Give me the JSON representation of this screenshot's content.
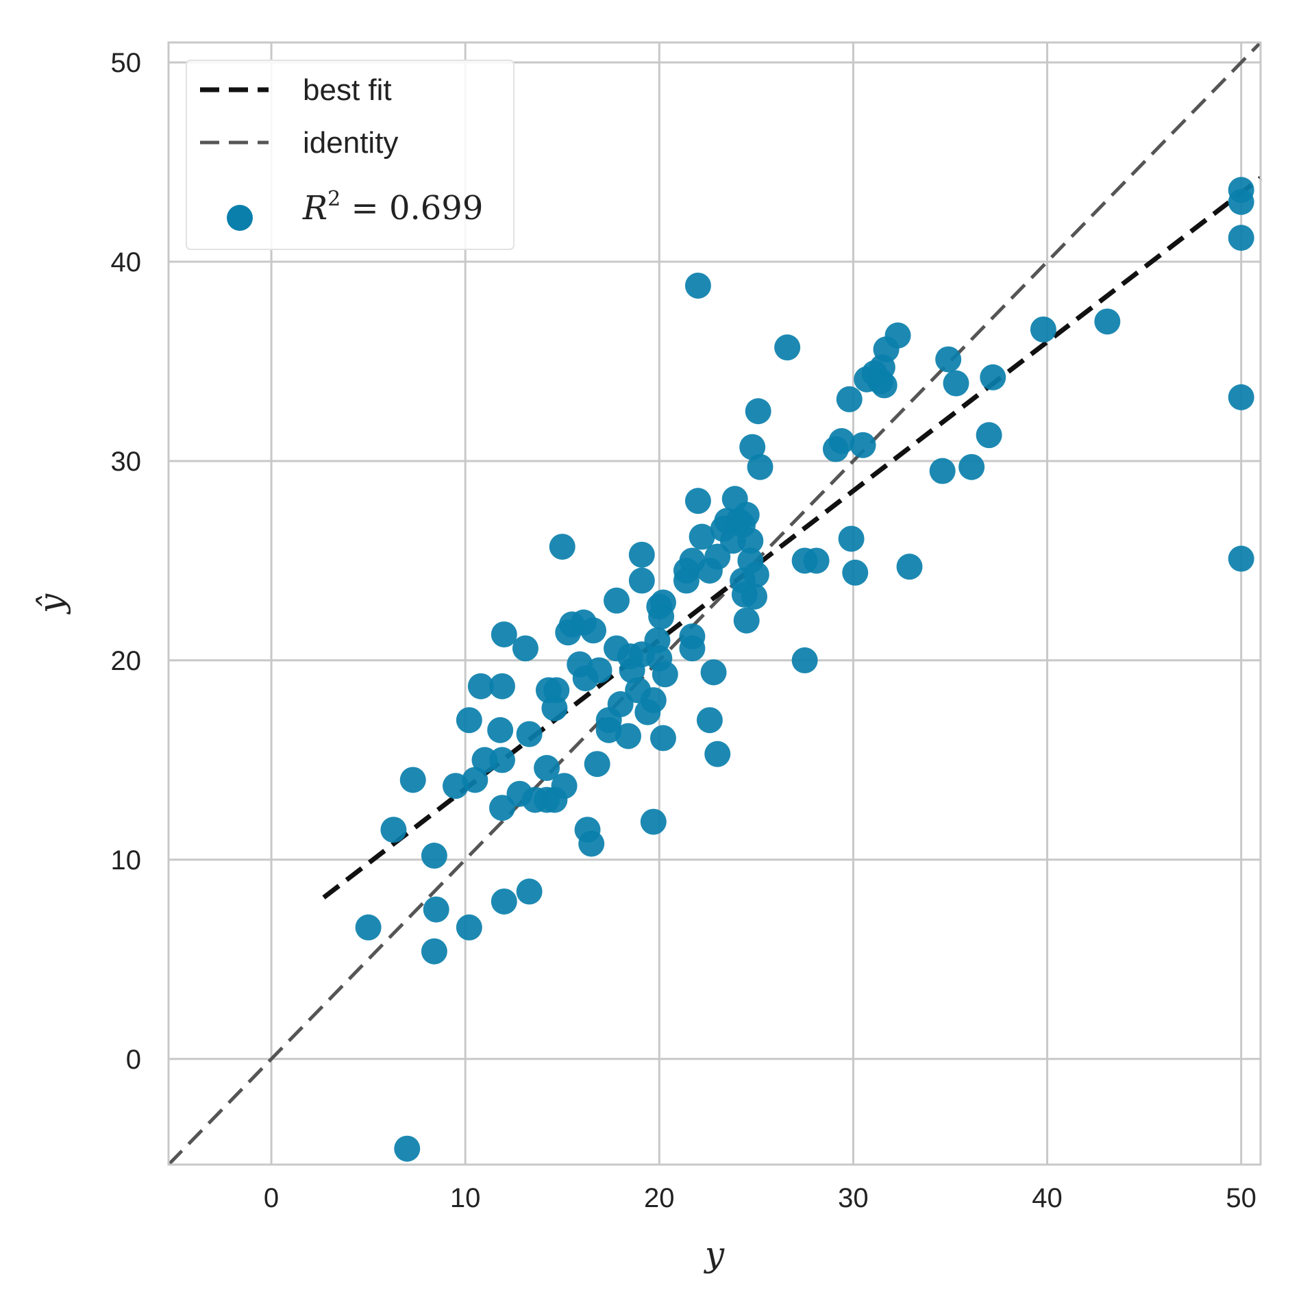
{
  "chart_data": {
    "type": "scatter",
    "xlabel": "y",
    "ylabel": "ŷ",
    "xlim": [
      -5.3,
      51
    ],
    "ylim": [
      -5.3,
      51
    ],
    "xticks": [
      "0",
      "10",
      "20",
      "30",
      "40",
      "50"
    ],
    "yticks": [
      "0",
      "10",
      "20",
      "30",
      "40",
      "50"
    ],
    "grid": true,
    "legend_position": "top-left",
    "colors": {
      "points": "#0a7fab",
      "best_fit": "#111111",
      "identity": "#555555",
      "grid": "#c8c8c8",
      "frame": "#c8c8c8"
    },
    "legend": {
      "best_fit": "best fit",
      "identity": "identity",
      "r2": "0.699"
    },
    "best_fit_line": {
      "x": [
        2.7,
        51.0
      ],
      "y": [
        8.1,
        44.2
      ]
    },
    "identity_line": {
      "x": [
        -5.3,
        51.0
      ],
      "y": [
        -5.3,
        51.0
      ]
    },
    "points": [
      [
        7.0,
        -4.5
      ],
      [
        5.0,
        6.6
      ],
      [
        6.3,
        11.5
      ],
      [
        7.3,
        14.0
      ],
      [
        8.4,
        10.2
      ],
      [
        8.5,
        7.5
      ],
      [
        8.4,
        5.4
      ],
      [
        10.2,
        6.6
      ],
      [
        12.0,
        7.9
      ],
      [
        13.3,
        8.4
      ],
      [
        10.2,
        17.0
      ],
      [
        10.8,
        18.7
      ],
      [
        11.9,
        18.7
      ],
      [
        11.8,
        16.5
      ],
      [
        11.9,
        15.0
      ],
      [
        11.0,
        15.0
      ],
      [
        10.5,
        14.0
      ],
      [
        9.5,
        13.7
      ],
      [
        11.9,
        12.6
      ],
      [
        12.8,
        13.3
      ],
      [
        12.0,
        21.3
      ],
      [
        13.1,
        20.6
      ],
      [
        13.3,
        16.3
      ],
      [
        13.6,
        13.0
      ],
      [
        14.2,
        14.6
      ],
      [
        14.2,
        13.0
      ],
      [
        14.6,
        13.0
      ],
      [
        15.1,
        13.7
      ],
      [
        14.3,
        18.5
      ],
      [
        14.7,
        18.5
      ],
      [
        14.6,
        17.6
      ],
      [
        15.0,
        25.7
      ],
      [
        15.3,
        21.4
      ],
      [
        15.5,
        21.8
      ],
      [
        16.1,
        21.9
      ],
      [
        16.6,
        21.5
      ],
      [
        15.9,
        19.8
      ],
      [
        16.2,
        19.1
      ],
      [
        16.9,
        19.5
      ],
      [
        16.3,
        11.5
      ],
      [
        16.5,
        10.8
      ],
      [
        16.8,
        14.8
      ],
      [
        17.4,
        17.0
      ],
      [
        17.4,
        16.5
      ],
      [
        17.8,
        23.0
      ],
      [
        17.8,
        20.6
      ],
      [
        18.5,
        20.2
      ],
      [
        18.0,
        17.8
      ],
      [
        18.4,
        16.2
      ],
      [
        18.6,
        19.5
      ],
      [
        18.9,
        18.5
      ],
      [
        19.1,
        20.3
      ],
      [
        19.1,
        25.3
      ],
      [
        19.1,
        24.0
      ],
      [
        19.4,
        17.4
      ],
      [
        19.7,
        18.0
      ],
      [
        19.7,
        11.9
      ],
      [
        19.9,
        21.0
      ],
      [
        20.0,
        22.7
      ],
      [
        20.1,
        22.2
      ],
      [
        20.2,
        22.9
      ],
      [
        20.0,
        20.1
      ],
      [
        20.3,
        19.3
      ],
      [
        20.2,
        16.1
      ],
      [
        21.4,
        24.0
      ],
      [
        21.4,
        24.5
      ],
      [
        21.7,
        25.0
      ],
      [
        21.7,
        21.2
      ],
      [
        21.7,
        20.6
      ],
      [
        22.0,
        38.8
      ],
      [
        22.0,
        28.0
      ],
      [
        22.2,
        26.2
      ],
      [
        22.6,
        24.5
      ],
      [
        22.6,
        17.0
      ],
      [
        22.8,
        19.4
      ],
      [
        23.0,
        15.3
      ],
      [
        23.0,
        25.2
      ],
      [
        23.3,
        26.6
      ],
      [
        23.5,
        27.0
      ],
      [
        23.8,
        26.0
      ],
      [
        23.9,
        28.1
      ],
      [
        24.1,
        27.0
      ],
      [
        24.3,
        26.8
      ],
      [
        24.5,
        27.3
      ],
      [
        24.7,
        26.0
      ],
      [
        24.7,
        25.0
      ],
      [
        24.3,
        24.0
      ],
      [
        24.4,
        23.3
      ],
      [
        24.5,
        22.0
      ],
      [
        25.0,
        24.3
      ],
      [
        24.9,
        23.2
      ],
      [
        24.8,
        30.7
      ],
      [
        25.1,
        32.5
      ],
      [
        25.2,
        29.7
      ],
      [
        26.6,
        35.7
      ],
      [
        27.5,
        20.0
      ],
      [
        27.5,
        25.0
      ],
      [
        28.1,
        25.0
      ],
      [
        29.1,
        30.6
      ],
      [
        29.4,
        31.0
      ],
      [
        29.8,
        33.1
      ],
      [
        29.9,
        26.1
      ],
      [
        30.1,
        24.4
      ],
      [
        30.5,
        30.8
      ],
      [
        30.7,
        34.1
      ],
      [
        31.1,
        34.4
      ],
      [
        31.4,
        34.0
      ],
      [
        31.5,
        34.7
      ],
      [
        31.6,
        33.8
      ],
      [
        31.7,
        35.6
      ],
      [
        32.3,
        36.3
      ],
      [
        32.9,
        24.7
      ],
      [
        34.6,
        29.5
      ],
      [
        34.9,
        35.1
      ],
      [
        35.3,
        33.9
      ],
      [
        36.1,
        29.7
      ],
      [
        37.0,
        31.3
      ],
      [
        37.2,
        34.2
      ],
      [
        39.8,
        36.6
      ],
      [
        43.1,
        37.0
      ],
      [
        50.0,
        43.6
      ],
      [
        50.0,
        43.0
      ],
      [
        50.0,
        41.2
      ],
      [
        50.0,
        33.2
      ],
      [
        50.0,
        25.1
      ]
    ]
  }
}
